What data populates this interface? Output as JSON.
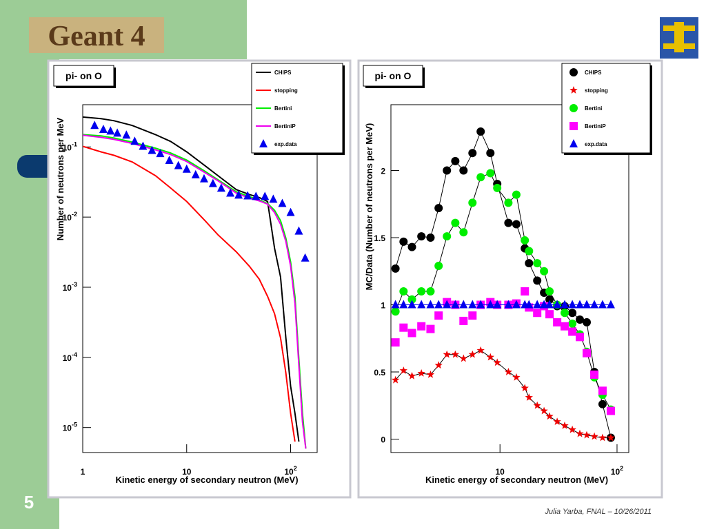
{
  "slide": {
    "logo": "Geant 4",
    "page_number": "5",
    "footer": "Julia Yarba, FNAL – 10/26/2011"
  },
  "chart_data": [
    {
      "type": "line",
      "title": "pi- on O",
      "xlabel": "Kinetic energy of secondary neutron (MeV)",
      "ylabel": "Number of neutrons per MeV",
      "xscale": "log",
      "yscale": "log",
      "xlim": [
        1,
        180
      ],
      "ylim": [
        4.4e-06,
        0.4
      ],
      "xticks": [
        1,
        10,
        {
          "value": 100,
          "label": "10",
          "exponent": "2"
        }
      ],
      "yticks": [
        {
          "value": 0.1,
          "label": "10",
          "exponent": "-1"
        },
        {
          "value": 0.01,
          "label": "10",
          "exponent": "-2"
        },
        {
          "value": 0.001,
          "label": "10",
          "exponent": "-3"
        },
        {
          "value": 0.0001,
          "label": "10",
          "exponent": "-4"
        },
        {
          "value": 1e-05,
          "label": "10",
          "exponent": "-5"
        }
      ],
      "legend": "top right",
      "series": [
        {
          "name": "CHIPS",
          "color": "#000000",
          "marker": "line",
          "x": [
            1,
            1.5,
            2,
            3,
            5,
            7,
            10,
            15,
            20,
            30,
            40,
            50,
            60,
            70,
            80,
            90,
            100,
            110,
            120
          ],
          "values": [
            0.267,
            0.253,
            0.236,
            0.202,
            0.15,
            0.12,
            0.085,
            0.054,
            0.039,
            0.0246,
            0.021,
            0.019,
            0.0167,
            0.0036,
            0.0014,
            0.00019,
            3.9e-05,
            1.6e-05,
            6.3e-06
          ]
        },
        {
          "name": "stopping",
          "color": "#ff0000",
          "marker": "line",
          "x": [
            1,
            1.5,
            2,
            3,
            5,
            7,
            10,
            15,
            20,
            30,
            40,
            50,
            60,
            70,
            80,
            90,
            100,
            110
          ],
          "values": [
            0.102,
            0.085,
            0.076,
            0.061,
            0.039,
            0.026,
            0.0167,
            0.0089,
            0.0056,
            0.0032,
            0.002,
            0.0013,
            0.00074,
            0.00042,
            0.00019,
            6e-05,
            1.6e-05,
            6.3e-06
          ]
        },
        {
          "name": "Bertini",
          "color": "#00ee00",
          "marker": "line",
          "x": [
            1,
            1.5,
            2,
            3,
            5,
            7,
            10,
            15,
            20,
            30,
            40,
            50,
            60,
            70,
            80,
            90,
            100,
            110,
            120,
            130,
            140
          ],
          "values": [
            0.15,
            0.144,
            0.134,
            0.117,
            0.096,
            0.082,
            0.065,
            0.045,
            0.034,
            0.023,
            0.0196,
            0.0175,
            0.0156,
            0.0125,
            0.0089,
            0.005,
            0.0023,
            0.00074,
            9.5e-05,
            1.6e-05,
            5e-06
          ]
        },
        {
          "name": "BertiniP",
          "color": "#ee00ee",
          "marker": "line",
          "x": [
            1,
            1.5,
            2,
            3,
            5,
            7,
            10,
            15,
            20,
            30,
            40,
            50,
            60,
            70,
            80,
            90,
            100,
            110,
            120,
            130,
            140
          ],
          "values": [
            0.147,
            0.137,
            0.128,
            0.112,
            0.091,
            0.078,
            0.062,
            0.043,
            0.033,
            0.022,
            0.0187,
            0.017,
            0.0153,
            0.0116,
            0.0079,
            0.0045,
            0.002,
            0.00059,
            7.6e-05,
            1.2e-05,
            5e-06
          ]
        },
        {
          "name": "exp.data",
          "color": "#0000ee",
          "marker": "triangle",
          "x": [
            1.3,
            1.58,
            1.85,
            2.15,
            2.63,
            3.16,
            3.8,
            4.64,
            5.57,
            6.81,
            8.32,
            10,
            12.2,
            14.7,
            17.9,
            21.5,
            26.3,
            31.6,
            38.6,
            46.4,
            56.6,
            68.1,
            83.2,
            100,
            120,
            138
          ],
          "values": [
            0.202,
            0.177,
            0.168,
            0.157,
            0.147,
            0.12,
            0.102,
            0.089,
            0.08,
            0.064,
            0.054,
            0.048,
            0.04,
            0.035,
            0.03,
            0.0257,
            0.0219,
            0.0205,
            0.02,
            0.0196,
            0.0196,
            0.0179,
            0.0156,
            0.0116,
            0.0063,
            0.0026
          ]
        }
      ]
    },
    {
      "type": "line",
      "title": "pi- on O",
      "xlabel": "Kinetic energy of secondary neutron (MeV)",
      "ylabel": "MC/Data (Number of neutrons per MeV)",
      "xscale": "log",
      "xlim": [
        1.17,
        126
      ],
      "ylim": [
        -0.1,
        2.49
      ],
      "xticks": [
        10,
        {
          "value": 100,
          "label": "10",
          "exponent": "2"
        }
      ],
      "yticks": [
        0,
        0.5,
        1,
        1.5,
        2
      ],
      "legend": "top right",
      "x": [
        1.28,
        1.5,
        1.77,
        2.13,
        2.55,
        2.99,
        3.52,
        4.15,
        4.88,
        5.82,
        6.84,
        8.28,
        9.47,
        11.8,
        13.8,
        16.3,
        17.7,
        20.8,
        23.8,
        26.5,
        30.8,
        35.7,
        41.5,
        48.1,
        55.1,
        64,
        75.2,
        88.5
      ],
      "series": [
        {
          "name": "CHIPS",
          "color": "#000000",
          "marker": "circle",
          "connected": true,
          "values": [
            1.27,
            1.47,
            1.43,
            1.51,
            1.5,
            1.72,
            2.0,
            2.07,
            2.0,
            2.13,
            2.29,
            2.13,
            1.9,
            1.61,
            1.6,
            1.42,
            1.31,
            1.18,
            1.09,
            1.04,
            0.99,
            0.99,
            0.94,
            0.89,
            0.87,
            0.5,
            0.26,
            0.01
          ]
        },
        {
          "name": "stopping",
          "color": "#ee0000",
          "marker": "star",
          "connected": true,
          "values": [
            0.44,
            0.51,
            0.47,
            0.49,
            0.48,
            0.55,
            0.63,
            0.63,
            0.6,
            0.63,
            0.66,
            0.61,
            0.57,
            0.5,
            0.46,
            0.38,
            0.31,
            0.25,
            0.21,
            0.17,
            0.13,
            0.1,
            0.07,
            0.04,
            0.03,
            0.02,
            0.01,
            0.01
          ]
        },
        {
          "name": "Bertini",
          "color": "#00ee00",
          "marker": "circle",
          "connected": true,
          "values": [
            0.95,
            1.1,
            1.04,
            1.1,
            1.1,
            1.29,
            1.51,
            1.61,
            1.54,
            1.76,
            1.95,
            1.98,
            1.87,
            1.76,
            1.82,
            1.48,
            1.4,
            1.31,
            1.25,
            1.1,
            1.0,
            0.94,
            0.86,
            0.78,
            0.65,
            0.46,
            0.33,
            0.22
          ]
        },
        {
          "name": "BertiniP",
          "color": "#ff00ff",
          "marker": "square",
          "connected": false,
          "values": [
            0.72,
            0.83,
            0.79,
            0.84,
            0.82,
            0.92,
            1.02,
            1.0,
            0.88,
            0.92,
            1.0,
            1.02,
            1.0,
            1.0,
            1.01,
            1.1,
            0.98,
            0.94,
            0.99,
            0.93,
            0.87,
            0.84,
            0.8,
            0.76,
            0.64,
            0.48,
            0.36,
            0.21
          ]
        },
        {
          "name": "exp.data",
          "color": "#0000ee",
          "marker": "triangle",
          "connected": true,
          "values": [
            1,
            1,
            1,
            1,
            1,
            1,
            1,
            1,
            1,
            1,
            1,
            1,
            1,
            1,
            1,
            1,
            1,
            1,
            1,
            1,
            1,
            1,
            1,
            1,
            1,
            1,
            1,
            1
          ]
        }
      ]
    }
  ]
}
